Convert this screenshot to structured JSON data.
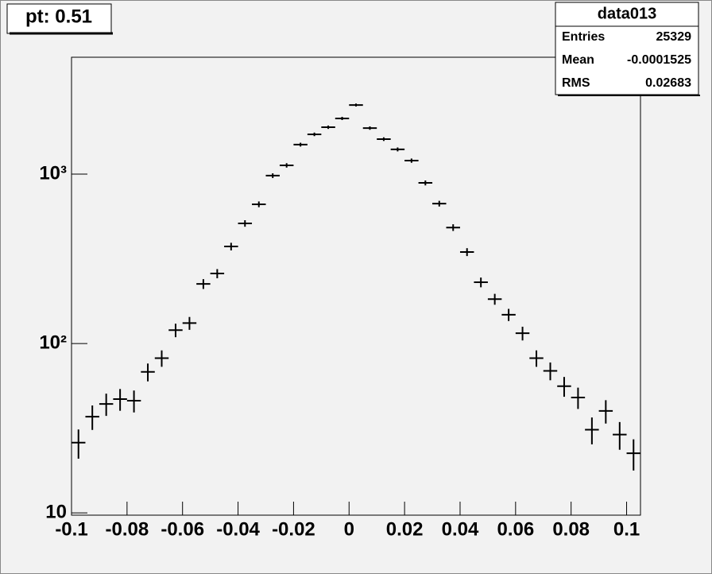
{
  "chart_data": {
    "type": "histogram",
    "title": "pt: 0.51",
    "stats": {
      "name": "data013",
      "rows": [
        {
          "label": "Entries",
          "value": 25329
        },
        {
          "label": "Mean",
          "value": -0.0001525
        },
        {
          "label": "RMS",
          "value": 0.02683
        }
      ]
    },
    "bins": [
      -0.1,
      -0.095,
      -0.09,
      -0.085,
      -0.08,
      -0.075,
      -0.07,
      -0.065,
      -0.06,
      -0.055,
      -0.05,
      -0.045,
      -0.04,
      -0.035,
      -0.03,
      -0.025,
      -0.02,
      -0.015,
      -0.01,
      -0.005,
      0,
      0.005,
      0.01,
      0.015,
      0.02,
      0.025,
      0.03,
      0.035,
      0.04,
      0.045,
      0.05,
      0.055,
      0.06,
      0.065,
      0.07,
      0.075,
      0.08,
      0.085,
      0.09,
      0.095,
      0.1,
      0.105
    ],
    "values": [
      26,
      37,
      44,
      47,
      46,
      68,
      82,
      120,
      132,
      225,
      259,
      374,
      512,
      664,
      980,
      1127,
      1494,
      1718,
      1893,
      2133,
      2560,
      1871,
      1610,
      1400,
      1202,
      888,
      670,
      484,
      347,
      230,
      183,
      148,
      115,
      82,
      69,
      56,
      48,
      31,
      40,
      29,
      22.5
    ],
    "errors": [
      5.1,
      6.1,
      6.6,
      6.9,
      6.8,
      8.2,
      9.1,
      11,
      11.5,
      15,
      16.1,
      19.3,
      22.6,
      25.8,
      31.3,
      33.6,
      38.7,
      41.4,
      43.5,
      46.2,
      50.6,
      43.3,
      40.1,
      37.4,
      34.7,
      29.8,
      25.9,
      22,
      18.6,
      15.2,
      13.5,
      12.2,
      10.7,
      9.1,
      8.3,
      7.5,
      6.9,
      5.6,
      6.3,
      5.4,
      4.7
    ],
    "color": "#000000",
    "xlim": [
      -0.1,
      0.105
    ],
    "xticks": [
      -0.1,
      -0.08,
      -0.06,
      -0.04,
      -0.02,
      0,
      0.02,
      0.04,
      0.06,
      0.08,
      0.1
    ],
    "ylim": [
      9.7,
      4900
    ],
    "yscale": "log",
    "yticks": [
      10,
      {
        "value": 100,
        "label": "10²"
      },
      {
        "value": 1000,
        "label": "10³"
      }
    ]
  }
}
